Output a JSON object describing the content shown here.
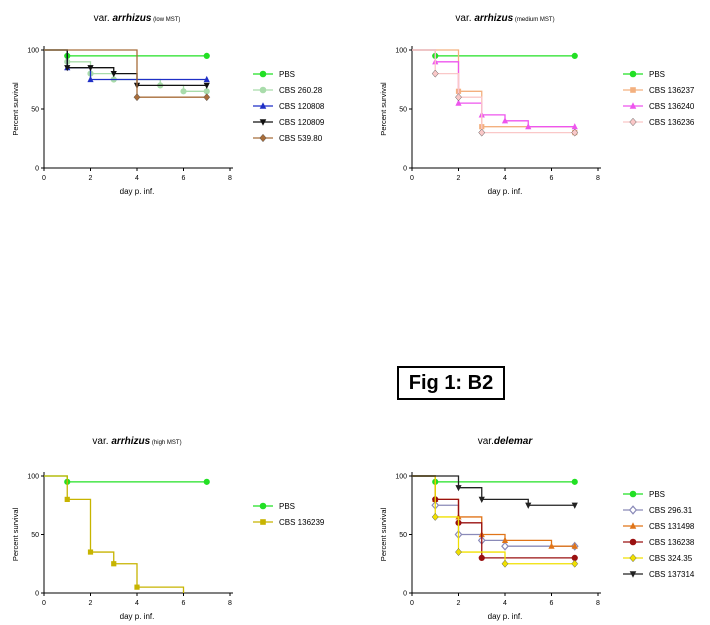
{
  "figure_label": "Fig 1: B2",
  "colors": {
    "pbs": "#22e024",
    "cbs_260_28": "#a9dcab",
    "cbs_120808": "#1f2fc6",
    "cbs_120809": "#111111",
    "cbs_539_80": "#a86d3a",
    "cbs_136237": "#f3b07f",
    "cbs_136240": "#ee55ee",
    "cbs_136236": "#fac8c8",
    "cbs_136239": "#c7b400",
    "cbs_296_31": "#8a8ab8",
    "cbs_131498": "#e07418",
    "cbs_136238": "#9a1010",
    "cbs_324_35": "#f0e000",
    "cbs_137314": "#222222"
  },
  "chart_data": [
    {
      "type": "line",
      "step": true,
      "title_prefix": "var. ",
      "title_main": "arrhizus",
      "title_suffix": " (low MST)",
      "xlabel": "day p. inf.",
      "ylabel": "Percent survival",
      "xlim": [
        0,
        8
      ],
      "ylim": [
        0,
        100
      ],
      "xticks": [
        0,
        2,
        4,
        6,
        8
      ],
      "yticks": [
        0,
        50,
        100
      ],
      "legend_position": "right",
      "series": [
        {
          "name": "PBS",
          "color": "#22e024",
          "marker": "circle",
          "x": [
            0,
            1,
            7
          ],
          "y": [
            100,
            95,
            95
          ]
        },
        {
          "name": "CBS 260.28",
          "color": "#a9dcab",
          "marker": "circle",
          "x": [
            0,
            1,
            2,
            3,
            5,
            6,
            7
          ],
          "y": [
            100,
            90,
            80,
            75,
            70,
            65,
            65
          ]
        },
        {
          "name": "CBS 120808",
          "color": "#1f2fc6",
          "marker": "triangle-up",
          "x": [
            0,
            1,
            2,
            7
          ],
          "y": [
            100,
            85,
            75,
            75
          ]
        },
        {
          "name": "CBS 120809",
          "color": "#111111",
          "marker": "triangle-down",
          "x": [
            0,
            1,
            2,
            3,
            4,
            7
          ],
          "y": [
            100,
            85,
            85,
            80,
            70,
            70
          ]
        },
        {
          "name": "CBS 539.80",
          "color": "#a86d3a",
          "marker": "diamond",
          "x": [
            0,
            4,
            7
          ],
          "y": [
            100,
            60,
            60
          ]
        }
      ]
    },
    {
      "type": "line",
      "step": true,
      "title_prefix": "var. ",
      "title_main": "arrhizus",
      "title_suffix": " (medium MST)",
      "xlabel": "day p. inf.",
      "ylabel": "Percent survival",
      "xlim": [
        0,
        8
      ],
      "ylim": [
        0,
        100
      ],
      "xticks": [
        0,
        2,
        4,
        6,
        8
      ],
      "yticks": [
        0,
        50,
        100
      ],
      "legend_position": "right",
      "series": [
        {
          "name": "PBS",
          "color": "#22e024",
          "marker": "circle",
          "x": [
            0,
            1,
            7
          ],
          "y": [
            100,
            95,
            95
          ]
        },
        {
          "name": "CBS 136237",
          "color": "#f3b07f",
          "marker": "square",
          "x": [
            0,
            2,
            3,
            7
          ],
          "y": [
            100,
            65,
            35,
            30
          ]
        },
        {
          "name": "CBS 136240",
          "color": "#ee55ee",
          "marker": "triangle-up",
          "x": [
            0,
            1,
            2,
            3,
            4,
            5,
            7
          ],
          "y": [
            100,
            90,
            55,
            45,
            40,
            35,
            35
          ]
        },
        {
          "name": "CBS 136236",
          "color": "#fac8c8",
          "marker": "diamond",
          "x": [
            0,
            1,
            2,
            3,
            7
          ],
          "y": [
            100,
            80,
            60,
            30,
            30
          ]
        }
      ]
    },
    {
      "type": "line",
      "step": true,
      "title_prefix": "var. ",
      "title_main": "arrhizus",
      "title_suffix": " (high MST)",
      "xlabel": "day p. inf.",
      "ylabel": "Percent survival",
      "xlim": [
        0,
        8
      ],
      "ylim": [
        0,
        100
      ],
      "xticks": [
        0,
        2,
        4,
        6,
        8
      ],
      "yticks": [
        0,
        50,
        100
      ],
      "legend_position": "right",
      "series": [
        {
          "name": "PBS",
          "color": "#22e024",
          "marker": "circle",
          "x": [
            0,
            1,
            7
          ],
          "y": [
            100,
            95,
            95
          ]
        },
        {
          "name": "CBS 136239",
          "color": "#c7b400",
          "marker": "square",
          "x": [
            0,
            1,
            2,
            3,
            4,
            6
          ],
          "y": [
            100,
            80,
            35,
            25,
            5,
            0
          ]
        }
      ]
    },
    {
      "type": "line",
      "step": true,
      "title_prefix": "var.",
      "title_main": "delemar",
      "title_suffix": "",
      "xlabel": "day p. inf.",
      "ylabel": "Percent survival",
      "xlim": [
        0,
        8
      ],
      "ylim": [
        0,
        100
      ],
      "xticks": [
        0,
        2,
        4,
        6,
        8
      ],
      "yticks": [
        0,
        50,
        100
      ],
      "legend_position": "right",
      "series": [
        {
          "name": "PBS",
          "color": "#22e024",
          "marker": "circle",
          "x": [
            0,
            1,
            7
          ],
          "y": [
            100,
            95,
            95
          ]
        },
        {
          "name": "CBS 296.31",
          "color": "#8a8ab8",
          "marker": "diamond-open",
          "x": [
            0,
            1,
            2,
            3,
            4,
            7
          ],
          "y": [
            100,
            75,
            50,
            45,
            40,
            40
          ]
        },
        {
          "name": "CBS 131498",
          "color": "#e07418",
          "marker": "triangle-up",
          "x": [
            0,
            1,
            2,
            3,
            4,
            6,
            7
          ],
          "y": [
            100,
            80,
            65,
            50,
            45,
            40,
            40
          ]
        },
        {
          "name": "CBS 136238",
          "color": "#9a1010",
          "marker": "circle",
          "x": [
            0,
            1,
            2,
            3,
            7
          ],
          "y": [
            100,
            80,
            60,
            30,
            30
          ]
        },
        {
          "name": "CBS 324.35",
          "color": "#f0e000",
          "marker": "diamond",
          "x": [
            0,
            1,
            2,
            4,
            7
          ],
          "y": [
            100,
            65,
            35,
            25,
            25
          ]
        },
        {
          "name": "CBS 137314",
          "color": "#222222",
          "marker": "triangle-down",
          "x": [
            0,
            2,
            3,
            5,
            7
          ],
          "y": [
            100,
            90,
            80,
            75,
            75
          ]
        }
      ]
    }
  ]
}
